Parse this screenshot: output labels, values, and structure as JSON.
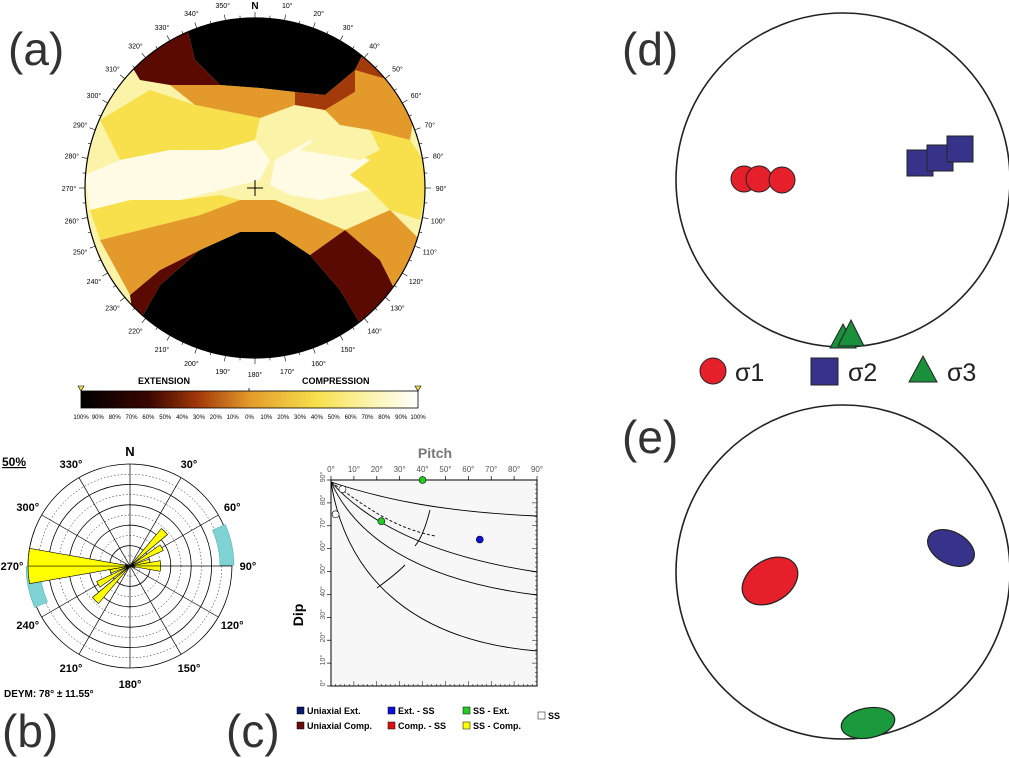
{
  "panels": {
    "a": {
      "letter": "(a)",
      "north": "N",
      "azimuth_labels": [
        "10°",
        "20°",
        "30°",
        "40°",
        "50°",
        "60°",
        "70°",
        "80°",
        "90°",
        "100°",
        "110°",
        "120°",
        "130°",
        "140°",
        "150°",
        "160°",
        "170°",
        "180°",
        "190°",
        "200°",
        "210°",
        "220°",
        "230°",
        "240°",
        "250°",
        "260°",
        "270°",
        "280°",
        "290°",
        "300°",
        "310°",
        "320°",
        "330°",
        "340°",
        "350°"
      ],
      "colorbar_left": "EXTENSION",
      "colorbar_right": "COMPRESSION",
      "colorbar_ticks": [
        "100%",
        "90%",
        "80%",
        "70%",
        "60%",
        "50%",
        "40%",
        "30%",
        "20%",
        "10%",
        "0%",
        "10%",
        "20%",
        "30%",
        "40%",
        "50%",
        "60%",
        "70%",
        "80%",
        "90%",
        "100%"
      ],
      "colors": {
        "black": "#000000",
        "dark_red": "#5a0a00",
        "red_brown": "#a33a0a",
        "orange": "#e39a2a",
        "yellow": "#f7e04c",
        "pale_yellow": "#fbf3a8",
        "near_white": "#fffbe4"
      }
    },
    "b": {
      "letter": "(b)",
      "north": "N",
      "scale_label": "50%",
      "azimuth_labels": [
        "30°",
        "60°",
        "90°",
        "120°",
        "150°",
        "180°",
        "210°",
        "240°",
        "270°",
        "300°",
        "330°"
      ],
      "statistic": "DEYM: 78° ± 11.55°",
      "petals": [
        {
          "azimuth_deg": 45,
          "length_fraction": 0.48
        },
        {
          "azimuth_deg": 60,
          "length_fraction": 0.36
        },
        {
          "azimuth_deg": 75,
          "length_fraction": 0.2
        },
        {
          "azimuth_deg": 85,
          "length_fraction": 0.3
        },
        {
          "azimuth_deg": 95,
          "length_fraction": 0.3
        },
        {
          "azimuth_deg": 105,
          "length_fraction": 0.05
        },
        {
          "azimuth_deg": 225,
          "length_fraction": 0.48
        },
        {
          "azimuth_deg": 240,
          "length_fraction": 0.36
        },
        {
          "azimuth_deg": 255,
          "length_fraction": 0.2
        },
        {
          "azimuth_deg": 265,
          "length_fraction": 1.0
        },
        {
          "azimuth_deg": 275,
          "length_fraction": 1.0
        },
        {
          "azimuth_deg": 285,
          "length_fraction": 0.05
        }
      ],
      "confidence_arc": {
        "mean_deg": 78,
        "half_width_deg": 11.55
      },
      "colors": {
        "petal": "#ffff00",
        "arc": "#7fd3d4"
      }
    },
    "c": {
      "letter": "(c)",
      "title": "Pitch",
      "ylabel": "Dip",
      "x_ticks": [
        "0°",
        "10°",
        "20°",
        "30°",
        "40°",
        "50°",
        "60°",
        "70°",
        "80°",
        "90°"
      ],
      "y_ticks": [
        "0°",
        "10°",
        "20°",
        "30°",
        "40°",
        "50°",
        "60°",
        "70°",
        "80°",
        "90°"
      ],
      "points": [
        {
          "pitch": 40,
          "dip": 90,
          "class": "SS - Ext.",
          "color": "#22cc22"
        },
        {
          "pitch": 22,
          "dip": 72,
          "class": "SS - Ext.",
          "color": "#22cc22"
        },
        {
          "pitch": 65,
          "dip": 64,
          "class": "Ext. - SS",
          "color": "#1010dd"
        },
        {
          "pitch": 5,
          "dip": 86,
          "class": "SS",
          "color": "#ffffff"
        },
        {
          "pitch": 2,
          "dip": 75,
          "class": "SS",
          "color": "#ffffff"
        }
      ],
      "legend": [
        {
          "label": "Uniaxial Ext.",
          "color": "#0a1a6e"
        },
        {
          "label": "Ext. - SS",
          "color": "#1010dd"
        },
        {
          "label": "SS - Ext.",
          "color": "#22cc22"
        },
        {
          "label": "SS",
          "color": "#ffffff"
        },
        {
          "label": "Uniaxial Comp.",
          "color": "#6e0a0a"
        },
        {
          "label": "Comp. - SS",
          "color": "#dd1010"
        },
        {
          "label": "SS - Comp.",
          "color": "#ffff00"
        }
      ]
    },
    "d": {
      "letter": "(d)",
      "legend": [
        {
          "symbol": "circle",
          "label": "σ1",
          "color": "#e5202a"
        },
        {
          "symbol": "square",
          "label": "σ2",
          "color": "#38338a"
        },
        {
          "symbol": "triangle",
          "label": "σ3",
          "color": "#1a8f3c"
        }
      ]
    },
    "e": {
      "letter": "(e)",
      "colors": {
        "sigma1": "#e5202a",
        "sigma2": "#38338a",
        "sigma3": "#1a9a3c"
      }
    }
  }
}
